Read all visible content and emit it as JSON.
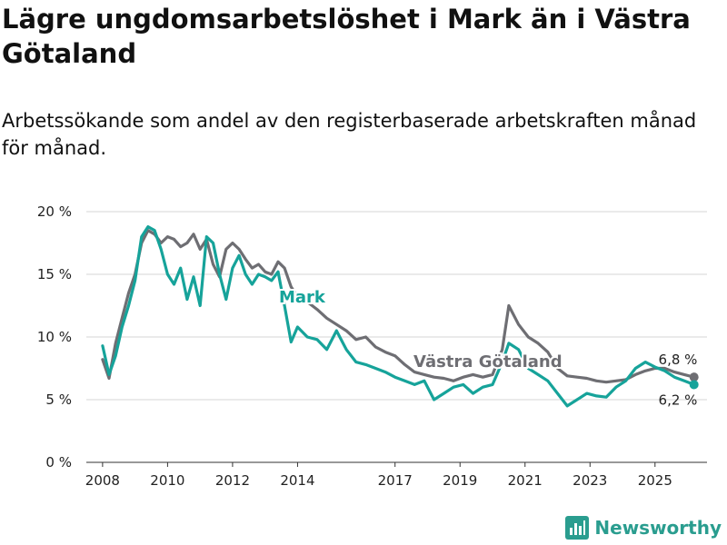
{
  "title": "Lägre ungdomsarbetslöshet i Mark än i Västra Götaland",
  "subtitle": "Arbetssökande som andel av den registerbaserade arbetskraften månad för månad.",
  "brand": "Newsworthy",
  "chart_data": {
    "type": "line",
    "title": "Lägre ungdomsarbetslöshet i Mark än i Västra Götaland",
    "xlabel": "",
    "ylabel": "",
    "xlim": [
      2007.5,
      2026.6
    ],
    "ylim": [
      0,
      20
    ],
    "y_ticks": [
      {
        "value": 0,
        "label": "0 %"
      },
      {
        "value": 5,
        "label": "5 %"
      },
      {
        "value": 10,
        "label": "10 %"
      },
      {
        "value": 15,
        "label": "15 %"
      },
      {
        "value": 20,
        "label": "20 %"
      }
    ],
    "x_ticks": [
      {
        "value": 2008,
        "label": "2008"
      },
      {
        "value": 2010,
        "label": "2010"
      },
      {
        "value": 2012,
        "label": "2012"
      },
      {
        "value": 2014,
        "label": "2014"
      },
      {
        "value": 2017,
        "label": "2017"
      },
      {
        "value": 2019,
        "label": "2019"
      },
      {
        "value": 2021,
        "label": "2021"
      },
      {
        "value": 2023,
        "label": "2023"
      },
      {
        "value": 2025,
        "label": "2025"
      }
    ],
    "grid": true,
    "series": [
      {
        "name": "Västra Götaland",
        "color": "#6e6e73",
        "end_label": "6,8 %",
        "x": [
          2008.0,
          2008.2,
          2008.4,
          2008.6,
          2008.8,
          2009.0,
          2009.2,
          2009.4,
          2009.6,
          2009.8,
          2010.0,
          2010.2,
          2010.4,
          2010.6,
          2010.8,
          2011.0,
          2011.2,
          2011.4,
          2011.6,
          2011.8,
          2012.0,
          2012.2,
          2012.4,
          2012.6,
          2012.8,
          2013.0,
          2013.2,
          2013.4,
          2013.6,
          2013.8,
          2014.0,
          2014.3,
          2014.6,
          2014.9,
          2015.2,
          2015.5,
          2015.8,
          2016.1,
          2016.4,
          2016.7,
          2017.0,
          2017.3,
          2017.6,
          2017.9,
          2018.2,
          2018.5,
          2018.8,
          2019.1,
          2019.4,
          2019.7,
          2020.0,
          2020.3,
          2020.5,
          2020.8,
          2021.1,
          2021.4,
          2021.7,
          2022.0,
          2022.3,
          2022.6,
          2022.9,
          2023.2,
          2023.5,
          2023.8,
          2024.1,
          2024.4,
          2024.7,
          2025.0,
          2025.3,
          2025.6,
          2025.9,
          2026.2
        ],
        "values": [
          8.2,
          6.7,
          9.5,
          11.5,
          13.5,
          15.0,
          17.5,
          18.5,
          18.2,
          17.5,
          18.0,
          17.8,
          17.2,
          17.5,
          18.2,
          17.0,
          17.8,
          15.8,
          14.8,
          17.0,
          17.5,
          17.0,
          16.2,
          15.5,
          15.8,
          15.2,
          15.0,
          16.0,
          15.5,
          14.0,
          13.2,
          12.8,
          12.2,
          11.5,
          11.0,
          10.5,
          9.8,
          10.0,
          9.2,
          8.8,
          8.5,
          7.8,
          7.2,
          7.0,
          6.8,
          6.7,
          6.5,
          6.8,
          7.0,
          6.8,
          7.0,
          9.0,
          12.5,
          11.0,
          10.0,
          9.5,
          8.8,
          7.5,
          6.9,
          6.8,
          6.7,
          6.5,
          6.4,
          6.5,
          6.6,
          7.0,
          7.3,
          7.5,
          7.5,
          7.2,
          7.0,
          6.8
        ]
      },
      {
        "name": "Mark",
        "color": "#16a39a",
        "end_label": "6,2 %",
        "x": [
          2008.0,
          2008.2,
          2008.4,
          2008.6,
          2008.8,
          2009.0,
          2009.2,
          2009.4,
          2009.6,
          2009.8,
          2010.0,
          2010.2,
          2010.4,
          2010.6,
          2010.8,
          2011.0,
          2011.2,
          2011.4,
          2011.6,
          2011.8,
          2012.0,
          2012.2,
          2012.4,
          2012.6,
          2012.8,
          2013.0,
          2013.2,
          2013.4,
          2013.6,
          2013.8,
          2014.0,
          2014.3,
          2014.6,
          2014.9,
          2015.2,
          2015.5,
          2015.8,
          2016.1,
          2016.4,
          2016.7,
          2017.0,
          2017.3,
          2017.6,
          2017.9,
          2018.2,
          2018.5,
          2018.8,
          2019.1,
          2019.4,
          2019.7,
          2020.0,
          2020.3,
          2020.5,
          2020.8,
          2021.1,
          2021.4,
          2021.7,
          2022.0,
          2022.3,
          2022.6,
          2022.9,
          2023.2,
          2023.5,
          2023.8,
          2024.1,
          2024.4,
          2024.7,
          2025.0,
          2025.3,
          2025.6,
          2025.9,
          2026.2
        ],
        "values": [
          9.3,
          7.0,
          8.5,
          10.8,
          12.5,
          14.5,
          18.0,
          18.8,
          18.5,
          17.0,
          15.0,
          14.2,
          15.5,
          13.0,
          14.8,
          12.5,
          18.0,
          17.5,
          15.0,
          13.0,
          15.5,
          16.5,
          15.0,
          14.2,
          15.0,
          14.8,
          14.5,
          15.2,
          12.5,
          9.6,
          10.8,
          10.0,
          9.8,
          9.0,
          10.5,
          9.0,
          8.0,
          7.8,
          7.5,
          7.2,
          6.8,
          6.5,
          6.2,
          6.5,
          5.0,
          5.5,
          6.0,
          6.2,
          5.5,
          6.0,
          6.2,
          8.0,
          9.5,
          9.0,
          7.5,
          7.0,
          6.5,
          5.5,
          4.5,
          5.0,
          5.5,
          5.3,
          5.2,
          6.0,
          6.5,
          7.5,
          8.0,
          7.6,
          7.3,
          6.8,
          6.5,
          6.2
        ]
      }
    ],
    "annotations": [
      {
        "text": "Mark",
        "series": "Mark"
      },
      {
        "text": "Västra Götaland",
        "series": "Västra Götaland"
      }
    ]
  }
}
